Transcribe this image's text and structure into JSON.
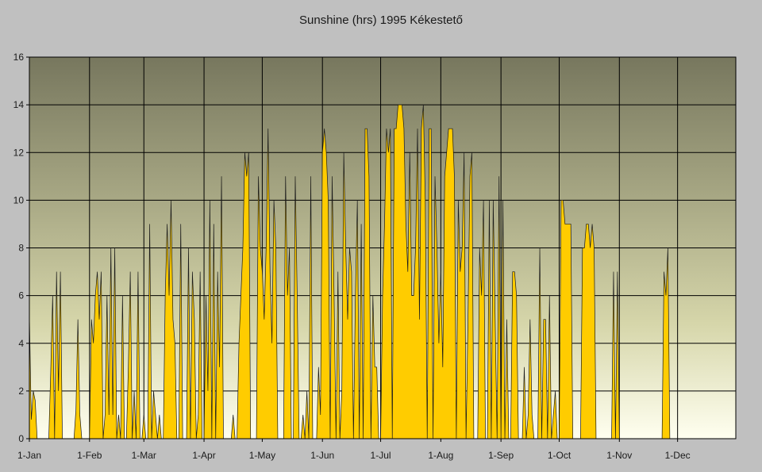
{
  "chart_data": {
    "type": "area",
    "title": "Sunshine (hrs) 1995 Kékestető",
    "xlabel": "",
    "ylabel": "",
    "ylim": [
      0,
      16
    ],
    "y_ticks": [
      0,
      2,
      4,
      6,
      8,
      10,
      12,
      14,
      16
    ],
    "x_range_days": [
      1,
      365
    ],
    "x_ticks": [
      {
        "label": "1-Jan",
        "day": 1
      },
      {
        "label": "1-Feb",
        "day": 32
      },
      {
        "label": "1-Mar",
        "day": 60
      },
      {
        "label": "1-Apr",
        "day": 91
      },
      {
        "label": "1-May",
        "day": 121
      },
      {
        "label": "1-Jun",
        "day": 152
      },
      {
        "label": "1-Jul",
        "day": 182
      },
      {
        "label": "1-Aug",
        "day": 213
      },
      {
        "label": "1-Sep",
        "day": 244
      },
      {
        "label": "1-Oct",
        "day": 274
      },
      {
        "label": "1-Nov",
        "day": 305
      },
      {
        "label": "1-Dec",
        "day": 335
      }
    ],
    "grid": true,
    "legend": "none",
    "series": [
      {
        "name": "Sunshine (hrs)",
        "color": "#ffcc00",
        "values": [
          5.2,
          0.8,
          2.0,
          1.6,
          0,
          0,
          0,
          0,
          0,
          0,
          0,
          2.8,
          6.0,
          0,
          7.0,
          2.0,
          7.0,
          0,
          0,
          0,
          0,
          0,
          0,
          0,
          1.2,
          5.0,
          1.0,
          0,
          0,
          0,
          0,
          0,
          5.0,
          4.0,
          6.0,
          7.0,
          5.0,
          7.0,
          0,
          1.0,
          6.0,
          1.0,
          8.0,
          1.0,
          8.0,
          0,
          1.0,
          0,
          6.0,
          0,
          0,
          3.0,
          7.0,
          0,
          2.0,
          0,
          7.0,
          0,
          0,
          1.0,
          0,
          0,
          9.0,
          0,
          2.0,
          1.0,
          0,
          1.0,
          0,
          0,
          6.0,
          9.0,
          6.0,
          10.0,
          5.0,
          4.0,
          0,
          0,
          9.0,
          0,
          0,
          0,
          8.0,
          0,
          7.0,
          5.0,
          0,
          1.0,
          7.0,
          0,
          0,
          6.0,
          2.0,
          10.0,
          0,
          9.0,
          0,
          7.0,
          3.0,
          11.0,
          0,
          0,
          0,
          0,
          0,
          1.0,
          0,
          0,
          4.0,
          6.0,
          8.0,
          12.0,
          11.0,
          12.0,
          0,
          0,
          0,
          0,
          11.0,
          8.0,
          7.0,
          5.0,
          8.0,
          13.0,
          7.0,
          4.0,
          10.0,
          8.0,
          0,
          0,
          0,
          0,
          11.0,
          6.0,
          8.0,
          0,
          0,
          11.0,
          6.0,
          0,
          0,
          1.0,
          0,
          2.0,
          0,
          11.0,
          0,
          0,
          0,
          3.0,
          1.0,
          12.0,
          13.0,
          12.0,
          10.0,
          0,
          11.0,
          6.0,
          0,
          7.0,
          0,
          2.0,
          12.0,
          8.0,
          5.0,
          8.0,
          7.0,
          0,
          6.0,
          10.0,
          0,
          9.0,
          0,
          13.0,
          13.0,
          11.0,
          0,
          6.0,
          3.0,
          3.0,
          0,
          0,
          6.0,
          9.0,
          13.0,
          12.0,
          13.0,
          0,
          13.0,
          13.0,
          14.0,
          14.0,
          14.0,
          13.0,
          9.0,
          7.0,
          12.0,
          6.0,
          6.0,
          8.0,
          13.0,
          5.0,
          13.0,
          14.0,
          10.0,
          0,
          13.0,
          13.0,
          0,
          11.0,
          8.0,
          4.0,
          7.0,
          3.0,
          11.0,
          12.0,
          13.0,
          13.0,
          13.0,
          11.0,
          0,
          10.0,
          7.0,
          8.0,
          12.0,
          0,
          5.0,
          11.0,
          12.0,
          0,
          0,
          0,
          8.0,
          6.0,
          10.0,
          0,
          0,
          10.0,
          0,
          10.0,
          5.0,
          0,
          11.0,
          0,
          10.0,
          0,
          5.0,
          0,
          0,
          7.0,
          7.0,
          6.0,
          0,
          0,
          0,
          3.0,
          0,
          1.0,
          5.0,
          1.0,
          0,
          0,
          0,
          8.0,
          0,
          5.0,
          5.0,
          0,
          6.0,
          0,
          1.0,
          2.0,
          0,
          0,
          10.0,
          10.0,
          9.0,
          9.0,
          9.0,
          9.0,
          0,
          0,
          0,
          0,
          0,
          8.0,
          8.0,
          9.0,
          9.0,
          8.0,
          9.0,
          8.0,
          0,
          0,
          0,
          0,
          0,
          0,
          0,
          0,
          0,
          7.0,
          0,
          7.0,
          0,
          0,
          0,
          0,
          0,
          0,
          0,
          0,
          0,
          0,
          0,
          0,
          0,
          0,
          0,
          0,
          0,
          0,
          0,
          0,
          0,
          0,
          0,
          7.0,
          6.0,
          8.0,
          0,
          0,
          0,
          0,
          0,
          0,
          0,
          0,
          0,
          0,
          0,
          0,
          0,
          0,
          0,
          0,
          0,
          0,
          0,
          0,
          0,
          0,
          0,
          0,
          0,
          0,
          0,
          0,
          0,
          0
        ]
      }
    ]
  }
}
